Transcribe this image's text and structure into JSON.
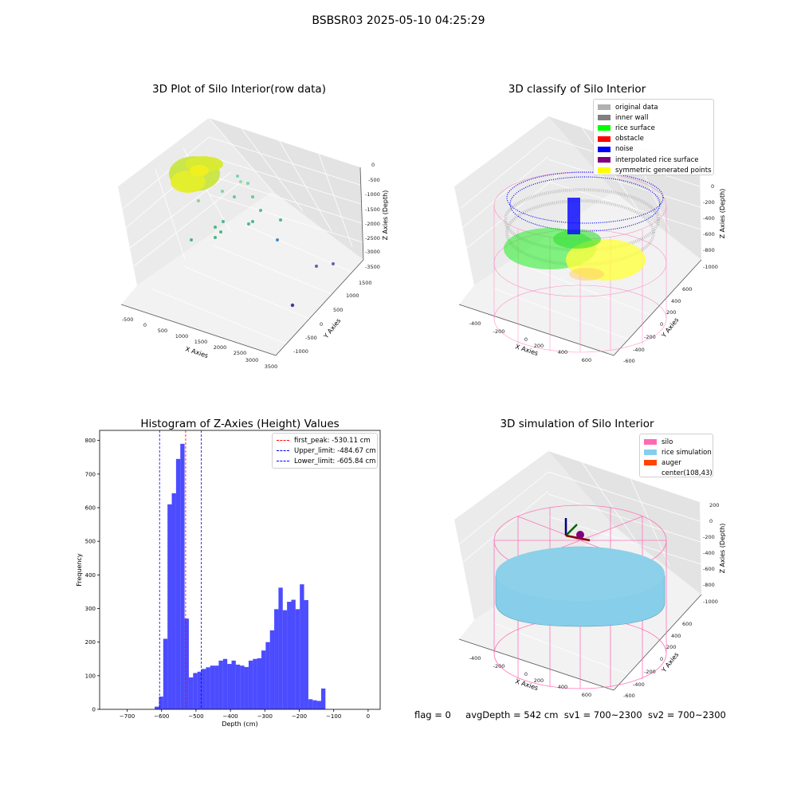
{
  "figure": {
    "suptitle": "BSBSR03 2025-05-10 04:25:29"
  },
  "panels": {
    "raw": {
      "title": "3D Plot of Silo Interior(row data)",
      "xlabel": "X Axies",
      "ylabel": "Y Axies",
      "zlabel": "Z Axies (Depth)",
      "xticks": [
        "-500",
        "0",
        "500",
        "1000",
        "1500",
        "2000",
        "2500",
        "3000",
        "3500"
      ],
      "yticks": [
        "-1000",
        "-500",
        "0",
        "500",
        "1000",
        "1500"
      ],
      "zticks": [
        "0",
        "-500",
        "-1000",
        "-1500",
        "-2000",
        "-2500",
        "-3000",
        "-3500"
      ]
    },
    "classify": {
      "title": "3D classify of Silo Interior",
      "xlabel": "X Axies",
      "ylabel": "Y Axies",
      "zlabel": "Z Axies (Depth)",
      "xticks": [
        "-400",
        "-200",
        "0",
        "200",
        "400",
        "600"
      ],
      "yticks": [
        "-600",
        "-400",
        "-200",
        "0",
        "200",
        "400",
        "600"
      ],
      "zticks": [
        "0",
        "-200",
        "-400",
        "-600",
        "-800",
        "-1000"
      ],
      "legend": [
        {
          "label": "original data",
          "color": "#b0b0b0"
        },
        {
          "label": "inner wall",
          "color": "#808080"
        },
        {
          "label": "rice surface",
          "color": "#00ff00"
        },
        {
          "label": "obstacle",
          "color": "#ff0000"
        },
        {
          "label": "noise",
          "color": "#0000ff"
        },
        {
          "label": "interpolated rice surface",
          "color": "#800080"
        },
        {
          "label": "symmetric generated points",
          "color": "#ffff00"
        }
      ]
    },
    "simulation": {
      "title": "3D simulation of Silo Interior",
      "xlabel": "X Axies",
      "ylabel": "Y Axies",
      "zlabel": "Z Axies (Depth)",
      "xticks": [
        "-400",
        "-200",
        "0",
        "200",
        "400",
        "600"
      ],
      "yticks": [
        "-600",
        "-400",
        "-200",
        "0",
        "200",
        "400",
        "600"
      ],
      "zticks": [
        "200",
        "0",
        "-200",
        "-400",
        "-600",
        "-800",
        "-1000"
      ],
      "legend": [
        {
          "label": "silo",
          "color": "#ff69b4"
        },
        {
          "label": "rice simulation",
          "color": "#87ceeb"
        },
        {
          "label": "auger",
          "color": "#ff4500"
        },
        {
          "label": "center(108,43)",
          "color": ""
        }
      ]
    }
  },
  "status": {
    "flag": "flag = 0",
    "avg_depth": "avgDepth = 542 cm",
    "sv1": "sv1 = 700~2300",
    "sv2": "sv2 = 700~2300"
  },
  "chart_data": {
    "type": "bar",
    "title": "Histogram of Z-Axies (Height) Values",
    "xlabel": "Depth (cm)",
    "ylabel": "Frequency",
    "xlim": [
      -780,
      35
    ],
    "ylim": [
      0,
      830
    ],
    "xticks": [
      -700,
      -600,
      -500,
      -400,
      -300,
      -200,
      -100,
      0
    ],
    "yticks": [
      0,
      100,
      200,
      300,
      400,
      500,
      600,
      700,
      800
    ],
    "bar_color": "#0000ff",
    "bin_left": -620,
    "bin_width": 12.4,
    "values": [
      8,
      38,
      210,
      610,
      643,
      745,
      790,
      270,
      95,
      108,
      112,
      120,
      125,
      130,
      130,
      145,
      150,
      135,
      145,
      133,
      130,
      126,
      145,
      150,
      152,
      175,
      200,
      235,
      298,
      362,
      295,
      320,
      326,
      298,
      372,
      325,
      30,
      27,
      25,
      62
    ],
    "lines": [
      {
        "label": "first_peak: -530.11 cm",
        "x": -530.11,
        "color": "#ff0000"
      },
      {
        "label": "Upper_limit: -484.67 cm",
        "x": -484.67,
        "color": "#0000ff"
      },
      {
        "label": "Lower_limit: -605.84 cm",
        "x": -605.84,
        "color": "#0000ff"
      }
    ],
    "legend_position": "top-right",
    "grid": false
  }
}
